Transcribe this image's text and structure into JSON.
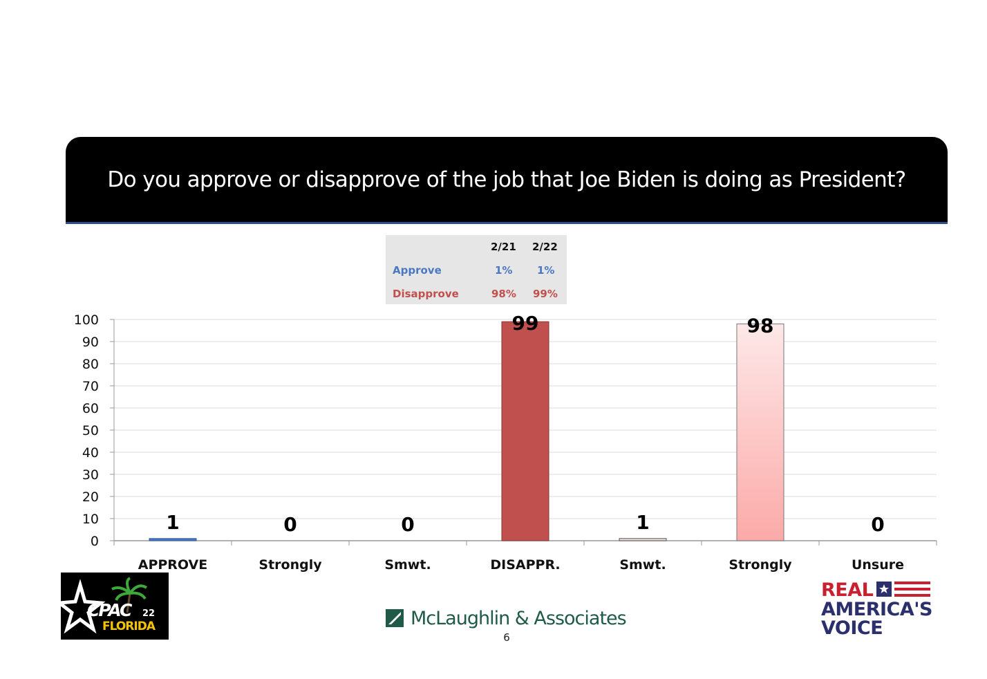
{
  "header": {
    "title": "Do you approve or disapprove of the job that Joe Biden is doing as President?"
  },
  "summary_table": {
    "columns": [
      "2/21",
      "2/22"
    ],
    "rows": [
      {
        "label": "Approve",
        "values": [
          "1%",
          "1%"
        ],
        "color": "#4a78c2"
      },
      {
        "label": "Disapprove",
        "values": [
          "98%",
          "99%"
        ],
        "color": "#c0504d"
      }
    ]
  },
  "chart_data": {
    "type": "bar",
    "categories": [
      "APPROVE",
      "Strongly",
      "Smwt.",
      "DISAPPR.",
      "Smwt.",
      "Strongly",
      "Unsure"
    ],
    "values": [
      1,
      0,
      0,
      99,
      1,
      98,
      0
    ],
    "data_labels": [
      "1",
      "0",
      "0",
      "99",
      "1",
      "98",
      "0"
    ],
    "bar_colors": [
      "#4a78c2",
      "#4a78c2",
      "#4a78c2",
      "#c0504d",
      "#f2dcdb",
      "#fbd4d2",
      "#cccccc"
    ],
    "ylim": [
      0,
      100
    ],
    "yticks": [
      0,
      10,
      20,
      30,
      40,
      50,
      60,
      70,
      80,
      90,
      100
    ],
    "grid": true,
    "title": "",
    "xlabel": "",
    "ylabel": ""
  },
  "footer": {
    "cpac_logo": {
      "text_top": "CPAC",
      "text_year": "22",
      "text_bottom": "FLORIDA"
    },
    "pollster": "McLaughlin & Associates",
    "page_number": "6",
    "network_logo": {
      "line1": "REAL",
      "line2": "AMERICA'S",
      "line3": "VOICE"
    }
  }
}
